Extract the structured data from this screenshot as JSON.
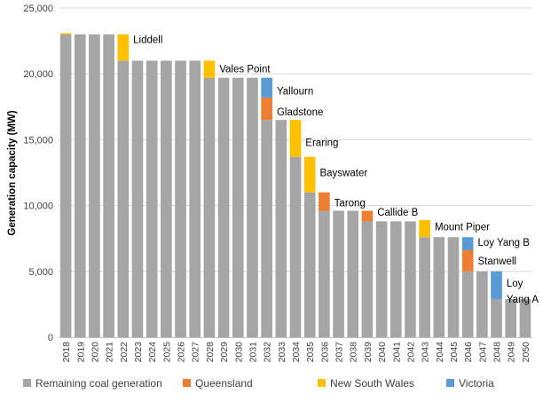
{
  "chart_data": {
    "type": "bar",
    "stacked": true,
    "title": "",
    "xlabel": "",
    "ylabel": "Generation capacity (MW)",
    "ylim": [
      0,
      25000
    ],
    "yticks": [
      0,
      5000,
      10000,
      15000,
      20000,
      25000
    ],
    "ytick_labels": [
      "0",
      "5,000",
      "10,000",
      "15,000",
      "20,000",
      "25,000"
    ],
    "grid": "horizontal",
    "legend_position": "bottom",
    "categories": [
      "2018",
      "2019",
      "2020",
      "2021",
      "2022",
      "2023",
      "2024",
      "2025",
      "2026",
      "2027",
      "2028",
      "2029",
      "2030",
      "2031",
      "2032",
      "2033",
      "2034",
      "2035",
      "2036",
      "2037",
      "2038",
      "2039",
      "2040",
      "2041",
      "2042",
      "2043",
      "2044",
      "2045",
      "2046",
      "2047",
      "2048",
      "2049",
      "2050"
    ],
    "series": [
      {
        "name": "Remaining coal generation",
        "color": "#a5a5a5",
        "values": [
          23000,
          23000,
          23000,
          23000,
          21000,
          21000,
          21000,
          21000,
          21000,
          21000,
          19700,
          19700,
          19700,
          19700,
          16500,
          16500,
          13700,
          11000,
          9600,
          9600,
          9600,
          8800,
          8800,
          8800,
          8800,
          7600,
          7600,
          7600,
          5000,
          5000,
          2900,
          2900,
          2900
        ]
      },
      {
        "name": "Queensland",
        "color": "#ed7d31",
        "values": [
          0,
          0,
          0,
          0,
          0,
          0,
          0,
          0,
          0,
          0,
          0,
          0,
          0,
          0,
          1700,
          0,
          0,
          0,
          1400,
          0,
          0,
          800,
          0,
          0,
          0,
          0,
          0,
          0,
          1600,
          0,
          0,
          0,
          0
        ]
      },
      {
        "name": "New South Wales",
        "color": "#ffc000",
        "values": [
          100,
          0,
          0,
          0,
          2000,
          0,
          0,
          0,
          0,
          0,
          1300,
          0,
          0,
          0,
          0,
          0,
          2800,
          2700,
          0,
          0,
          0,
          0,
          0,
          0,
          0,
          1300,
          0,
          0,
          0,
          0,
          0,
          0,
          0
        ]
      },
      {
        "name": "Victoria",
        "color": "#5b9bd5",
        "values": [
          0,
          0,
          0,
          0,
          0,
          0,
          0,
          0,
          0,
          0,
          0,
          0,
          0,
          0,
          1500,
          0,
          0,
          0,
          0,
          0,
          0,
          0,
          0,
          0,
          0,
          0,
          0,
          0,
          1000,
          0,
          2100,
          0,
          0
        ]
      }
    ],
    "annotations": [
      {
        "text": "Liddell",
        "category": "2022",
        "value": 22600
      },
      {
        "text": "Vales Point",
        "category": "2028",
        "value": 20400
      },
      {
        "text": "Yallourn",
        "category": "2032",
        "value": 18700
      },
      {
        "text": "Gladstone",
        "category": "2032",
        "value": 17100
      },
      {
        "text": "Eraring",
        "category": "2034",
        "value": 14800
      },
      {
        "text": "Bayswater",
        "category": "2035",
        "value": 12500
      },
      {
        "text": "Tarong",
        "category": "2036",
        "value": 10200
      },
      {
        "text": "Callide B",
        "category": "2039",
        "value": 9500
      },
      {
        "text": "Mount Piper",
        "category": "2043",
        "value": 8400
      },
      {
        "text": "Loy Yang B",
        "category": "2046",
        "value": 7200
      },
      {
        "text": "Stanwell",
        "category": "2046",
        "value": 5800
      },
      {
        "text": "Loy",
        "category": "2048",
        "value": 4100
      },
      {
        "text": "Yang A",
        "category": "2048",
        "value": 2900
      }
    ]
  }
}
